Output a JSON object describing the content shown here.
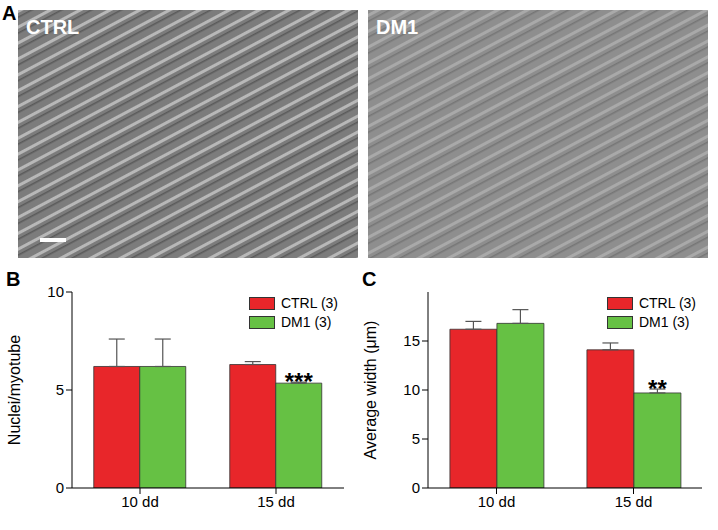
{
  "images": {
    "panel_label": "A",
    "labels": [
      "CTRL",
      "DM1"
    ]
  },
  "chart_data": [
    {
      "panel_label": "B",
      "type": "bar",
      "categories": [
        "10 dd",
        "15 dd"
      ],
      "ylabel": "Nuclei/myotube",
      "ylim": [
        0,
        10
      ],
      "yticks": [
        0,
        5,
        10
      ],
      "grid": false,
      "legend": "upper right",
      "series": [
        {
          "name": "CTRL (3)",
          "color": "#e8262a",
          "values": [
            6.2,
            6.3
          ],
          "errors": [
            1.4,
            0.15
          ],
          "annotations": [
            null,
            null
          ]
        },
        {
          "name": "DM1 (3)",
          "color": "#66c144",
          "values": [
            6.2,
            5.35
          ],
          "errors": [
            1.4,
            0.05
          ],
          "annotations": [
            null,
            "***"
          ]
        }
      ]
    },
    {
      "panel_label": "C",
      "type": "bar",
      "categories": [
        "10 dd",
        "15 dd"
      ],
      "ylabel": "Average width (μm)",
      "ylim": [
        0,
        20
      ],
      "yticks": [
        0,
        5,
        10,
        15
      ],
      "grid": false,
      "legend": "upper right",
      "series": [
        {
          "name": "CTRL (3)",
          "color": "#e8262a",
          "values": [
            16.2,
            14.1
          ],
          "errors": [
            0.8,
            0.7
          ],
          "annotations": [
            null,
            null
          ]
        },
        {
          "name": "DM1 (3)",
          "color": "#66c144",
          "values": [
            16.8,
            9.7
          ],
          "errors": [
            1.4,
            0.4
          ],
          "annotations": [
            null,
            "**"
          ]
        }
      ]
    }
  ]
}
